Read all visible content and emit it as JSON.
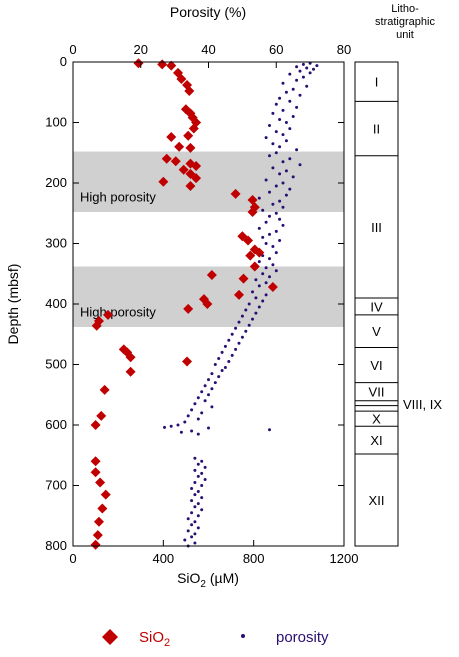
{
  "colors": {
    "sio2": "#c00000",
    "porosity": "#2a0f73",
    "band": "#d0d0d0",
    "axis": "#000000"
  },
  "chart_data": {
    "type": "scatter",
    "y": {
      "label": "Depth (mbsf)",
      "range": [
        0,
        800
      ],
      "inverted": true,
      "ticks": [
        0,
        100,
        200,
        300,
        400,
        500,
        600,
        700,
        800
      ],
      "tick_labels": [
        "0",
        "100",
        "200",
        "300",
        "400",
        "500",
        "600",
        "700",
        "800"
      ]
    },
    "x_bottom": {
      "label_main": "SiO",
      "label_sub": "2",
      "label_unit": " (µM)",
      "range": [
        0,
        1200
      ],
      "ticks": [
        0,
        400,
        800,
        1200
      ],
      "tick_labels": [
        "0",
        "400",
        "800",
        "1200"
      ]
    },
    "x_top": {
      "label": "Porosity (%)",
      "range": [
        0,
        80
      ],
      "ticks": [
        0,
        20,
        40,
        60,
        80
      ],
      "tick_labels": [
        "0",
        "20",
        "40",
        "60",
        "80"
      ]
    },
    "shaded_intervals": [
      {
        "label": "High porosity",
        "top": 148,
        "bottom": 248
      },
      {
        "label": "High porosity",
        "top": 338,
        "bottom": 438
      }
    ],
    "lithostratigraphy": {
      "title_lines": [
        "Litho-",
        "stratigraphic",
        "unit"
      ],
      "units": [
        {
          "label": "I",
          "top": 0,
          "bottom": 65
        },
        {
          "label": "II",
          "top": 65,
          "bottom": 155
        },
        {
          "label": "III",
          "top": 155,
          "bottom": 390
        },
        {
          "label": "IV",
          "top": 390,
          "bottom": 418
        },
        {
          "label": "V",
          "top": 418,
          "bottom": 472
        },
        {
          "label": "VI",
          "top": 472,
          "bottom": 530
        },
        {
          "label": "VII",
          "top": 530,
          "bottom": 560
        },
        {
          "label": "",
          "top": 560,
          "bottom": 568
        },
        {
          "label": "",
          "top": 568,
          "bottom": 577
        },
        {
          "label": "X",
          "top": 577,
          "bottom": 602
        },
        {
          "label": "XI",
          "top": 602,
          "bottom": 648
        },
        {
          "label": "XII",
          "top": 648,
          "bottom": 800
        }
      ],
      "callout": "VIII, IX"
    },
    "series": [
      {
        "name": "SiO",
        "name_sub": "2",
        "axis": "bottom",
        "marker": "diamond",
        "points": [
          [
            290,
            2
          ],
          [
            395,
            4
          ],
          [
            435,
            6
          ],
          [
            465,
            18
          ],
          [
            480,
            28
          ],
          [
            505,
            38
          ],
          [
            515,
            48
          ],
          [
            500,
            78
          ],
          [
            520,
            85
          ],
          [
            530,
            92
          ],
          [
            545,
            100
          ],
          [
            535,
            110
          ],
          [
            510,
            122
          ],
          [
            435,
            124
          ],
          [
            470,
            140
          ],
          [
            520,
            142
          ],
          [
            415,
            160
          ],
          [
            455,
            164
          ],
          [
            520,
            168
          ],
          [
            545,
            172
          ],
          [
            490,
            178
          ],
          [
            520,
            185
          ],
          [
            545,
            192
          ],
          [
            400,
            198
          ],
          [
            520,
            205
          ],
          [
            720,
            218
          ],
          [
            795,
            228
          ],
          [
            805,
            240
          ],
          [
            795,
            248
          ],
          [
            750,
            288
          ],
          [
            775,
            295
          ],
          [
            805,
            310
          ],
          [
            825,
            315
          ],
          [
            785,
            320
          ],
          [
            805,
            338
          ],
          [
            615,
            352
          ],
          [
            755,
            358
          ],
          [
            580,
            392
          ],
          [
            595,
            400
          ],
          [
            735,
            385
          ],
          [
            885,
            372
          ],
          [
            510,
            408
          ],
          [
            155,
            418
          ],
          [
            115,
            428
          ],
          [
            105,
            436
          ],
          [
            505,
            495
          ],
          [
            225,
            475
          ],
          [
            240,
            480
          ],
          [
            255,
            488
          ],
          [
            255,
            512
          ],
          [
            140,
            542
          ],
          [
            125,
            585
          ],
          [
            100,
            600
          ],
          [
            100,
            660
          ],
          [
            100,
            678
          ],
          [
            120,
            695
          ],
          [
            145,
            715
          ],
          [
            130,
            738
          ],
          [
            115,
            760
          ],
          [
            110,
            782
          ],
          [
            100,
            798
          ]
        ]
      },
      {
        "name": "porosity",
        "axis": "top",
        "marker": "dot",
        "points": [
          [
            70,
            2
          ],
          [
            68,
            4
          ],
          [
            72,
            6
          ],
          [
            66,
            8
          ],
          [
            69,
            10
          ],
          [
            71,
            12
          ],
          [
            67,
            15
          ],
          [
            70,
            18
          ],
          [
            64,
            20
          ],
          [
            68,
            25
          ],
          [
            66,
            30
          ],
          [
            62,
            35
          ],
          [
            69,
            40
          ],
          [
            65,
            45
          ],
          [
            63,
            50
          ],
          [
            67,
            55
          ],
          [
            61,
            60
          ],
          [
            64,
            65
          ],
          [
            60,
            70
          ],
          [
            66,
            75
          ],
          [
            62,
            80
          ],
          [
            59,
            85
          ],
          [
            65,
            90
          ],
          [
            61,
            95
          ],
          [
            63,
            100
          ],
          [
            58,
            105
          ],
          [
            64,
            110
          ],
          [
            60,
            115
          ],
          [
            62,
            120
          ],
          [
            57,
            125
          ],
          [
            63,
            130
          ],
          [
            59,
            135
          ],
          [
            61,
            140
          ],
          [
            66,
            145
          ],
          [
            60,
            150
          ],
          [
            58,
            155
          ],
          [
            64,
            160
          ],
          [
            62,
            165
          ],
          [
            67,
            170
          ],
          [
            59,
            175
          ],
          [
            63,
            180
          ],
          [
            61,
            185
          ],
          [
            65,
            190
          ],
          [
            57,
            195
          ],
          [
            62,
            200
          ],
          [
            60,
            205
          ],
          [
            64,
            210
          ],
          [
            58,
            215
          ],
          [
            63,
            220
          ],
          [
            55,
            225
          ],
          [
            61,
            230
          ],
          [
            59,
            235
          ],
          [
            62,
            240
          ],
          [
            56,
            245
          ],
          [
            60,
            250
          ],
          [
            58,
            255
          ],
          [
            61,
            260
          ],
          [
            57,
            265
          ],
          [
            62,
            270
          ],
          [
            55,
            275
          ],
          [
            60,
            280
          ],
          [
            58,
            285
          ],
          [
            56,
            290
          ],
          [
            61,
            295
          ],
          [
            57,
            300
          ],
          [
            59,
            305
          ],
          [
            54,
            310
          ],
          [
            60,
            315
          ],
          [
            56,
            320
          ],
          [
            58,
            325
          ],
          [
            55,
            330
          ],
          [
            59,
            335
          ],
          [
            57,
            340
          ],
          [
            60,
            345
          ],
          [
            56,
            350
          ],
          [
            58,
            355
          ],
          [
            54,
            360
          ],
          [
            57,
            365
          ],
          [
            55,
            370
          ],
          [
            59,
            375
          ],
          [
            53,
            380
          ],
          [
            57,
            385
          ],
          [
            54,
            390
          ],
          [
            56,
            395
          ],
          [
            52,
            400
          ],
          [
            55,
            405
          ],
          [
            51,
            410
          ],
          [
            54,
            415
          ],
          [
            50,
            420
          ],
          [
            53,
            425
          ],
          [
            49,
            430
          ],
          [
            52,
            435
          ],
          [
            48,
            440
          ],
          [
            51,
            445
          ],
          [
            47,
            450
          ],
          [
            50,
            455
          ],
          [
            46,
            460
          ],
          [
            49,
            465
          ],
          [
            45,
            470
          ],
          [
            48,
            475
          ],
          [
            44,
            480
          ],
          [
            47,
            485
          ],
          [
            43,
            490
          ],
          [
            46,
            495
          ],
          [
            42,
            500
          ],
          [
            45,
            505
          ],
          [
            44,
            510
          ],
          [
            41,
            515
          ],
          [
            43,
            520
          ],
          [
            40,
            525
          ],
          [
            42,
            530
          ],
          [
            39,
            535
          ],
          [
            41,
            540
          ],
          [
            38,
            545
          ],
          [
            40,
            550
          ],
          [
            37,
            555
          ],
          [
            39,
            560
          ],
          [
            36,
            565
          ],
          [
            41,
            570
          ],
          [
            35,
            575
          ],
          [
            38,
            580
          ],
          [
            34,
            585
          ],
          [
            37,
            590
          ],
          [
            33,
            595
          ],
          [
            29,
            602
          ],
          [
            27,
            604
          ],
          [
            31,
            600
          ],
          [
            40,
            605
          ],
          [
            58,
            608
          ],
          [
            35,
            610
          ],
          [
            32,
            612
          ],
          [
            37,
            615
          ],
          [
            36,
            655
          ],
          [
            38,
            660
          ],
          [
            37,
            665
          ],
          [
            39,
            670
          ],
          [
            36,
            675
          ],
          [
            38,
            680
          ],
          [
            37,
            685
          ],
          [
            39,
            690
          ],
          [
            36,
            695
          ],
          [
            38,
            700
          ],
          [
            35,
            705
          ],
          [
            37,
            710
          ],
          [
            36,
            715
          ],
          [
            38,
            720
          ],
          [
            35,
            725
          ],
          [
            37,
            730
          ],
          [
            36,
            735
          ],
          [
            38,
            740
          ],
          [
            35,
            745
          ],
          [
            37,
            750
          ],
          [
            34,
            755
          ],
          [
            36,
            760
          ],
          [
            35,
            765
          ],
          [
            37,
            770
          ],
          [
            34,
            775
          ],
          [
            36,
            780
          ],
          [
            35,
            785
          ],
          [
            33,
            790
          ],
          [
            36,
            795
          ],
          [
            34,
            800
          ]
        ]
      }
    ]
  }
}
